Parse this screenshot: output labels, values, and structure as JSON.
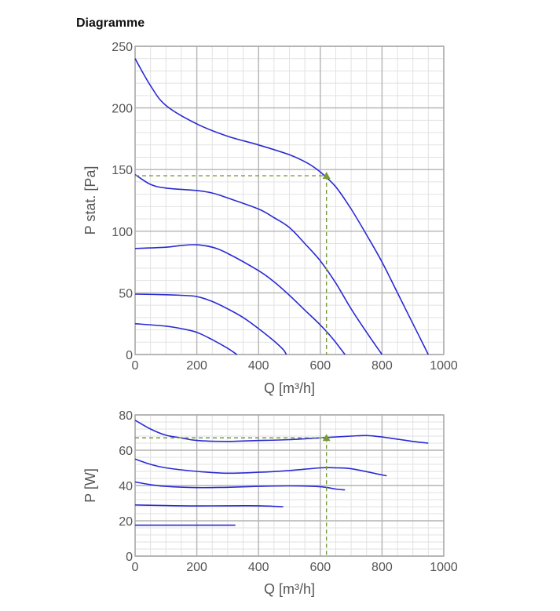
{
  "page_title": "Diagramme",
  "colors": {
    "curve": "#2a2ad4",
    "operating": "#7a9a3a",
    "grid_major": "#b4b4b4",
    "grid_minor": "#e2e2e2",
    "axis_text": "#555555"
  },
  "chart_data": [
    {
      "type": "line",
      "title": "",
      "xlabel": "Q [m³/h]",
      "ylabel": "P stat. [Pa]",
      "xlim": [
        0,
        1000
      ],
      "ylim": [
        0,
        250
      ],
      "xticks": [
        0,
        200,
        400,
        600,
        800,
        1000
      ],
      "yticks": [
        0,
        50,
        100,
        150,
        200,
        250
      ],
      "grid": true,
      "operating_point": {
        "x": 620,
        "y": 145
      },
      "series": [
        {
          "points": [
            [
              0,
              240
            ],
            [
              50,
              218
            ],
            [
              100,
              202
            ],
            [
              200,
              187
            ],
            [
              300,
              177
            ],
            [
              400,
              170
            ],
            [
              500,
              162
            ],
            [
              560,
              155
            ],
            [
              600,
              148
            ],
            [
              650,
              136
            ],
            [
              700,
              118
            ],
            [
              750,
              97
            ],
            [
              800,
              75
            ],
            [
              850,
              50
            ],
            [
              900,
              25
            ],
            [
              950,
              0
            ]
          ]
        },
        {
          "points": [
            [
              0,
              146
            ],
            [
              50,
              138
            ],
            [
              100,
              135
            ],
            [
              200,
              133
            ],
            [
              250,
              131
            ],
            [
              300,
              127
            ],
            [
              400,
              118
            ],
            [
              450,
              111
            ],
            [
              500,
              103
            ],
            [
              550,
              90
            ],
            [
              600,
              76
            ],
            [
              650,
              58
            ],
            [
              700,
              37
            ],
            [
              750,
              18
            ],
            [
              800,
              0
            ]
          ]
        },
        {
          "points": [
            [
              0,
              86
            ],
            [
              100,
              87
            ],
            [
              150,
              88.5
            ],
            [
              200,
              89
            ],
            [
              250,
              87
            ],
            [
              300,
              82
            ],
            [
              400,
              68
            ],
            [
              450,
              59
            ],
            [
              500,
              48
            ],
            [
              550,
              36
            ],
            [
              600,
              24
            ],
            [
              640,
              13
            ],
            [
              680,
              0
            ]
          ]
        },
        {
          "points": [
            [
              0,
              49
            ],
            [
              100,
              48.5
            ],
            [
              150,
              48
            ],
            [
              200,
              47
            ],
            [
              250,
              43
            ],
            [
              300,
              37
            ],
            [
              350,
              30
            ],
            [
              400,
              21
            ],
            [
              450,
              11
            ],
            [
              480,
              4
            ],
            [
              490,
              0
            ]
          ]
        },
        {
          "points": [
            [
              0,
              25
            ],
            [
              100,
              23
            ],
            [
              150,
              21
            ],
            [
              200,
              18
            ],
            [
              250,
              12
            ],
            [
              300,
              5
            ],
            [
              330,
              0
            ]
          ]
        }
      ]
    },
    {
      "type": "line",
      "title": "",
      "xlabel": "Q [m³/h]",
      "ylabel": "P [W]",
      "xlim": [
        0,
        1000
      ],
      "ylim": [
        0,
        80
      ],
      "xticks": [
        0,
        200,
        400,
        600,
        800,
        1000
      ],
      "yticks": [
        0,
        20,
        40,
        60,
        80
      ],
      "grid": true,
      "operating_point": {
        "x": 620,
        "y": 67
      },
      "series": [
        {
          "points": [
            [
              0,
              77
            ],
            [
              50,
              72
            ],
            [
              100,
              68.5
            ],
            [
              150,
              67
            ],
            [
              200,
              65.5
            ],
            [
              300,
              65
            ],
            [
              400,
              65.5
            ],
            [
              500,
              66
            ],
            [
              600,
              67
            ],
            [
              700,
              68
            ],
            [
              750,
              68.3
            ],
            [
              800,
              67.5
            ],
            [
              900,
              65
            ],
            [
              950,
              64
            ]
          ]
        },
        {
          "points": [
            [
              0,
              55
            ],
            [
              50,
              52
            ],
            [
              100,
              50
            ],
            [
              200,
              48
            ],
            [
              300,
              47
            ],
            [
              400,
              47.5
            ],
            [
              500,
              48.5
            ],
            [
              600,
              50
            ],
            [
              650,
              50
            ],
            [
              700,
              49.5
            ],
            [
              800,
              46
            ],
            [
              815,
              45.5
            ]
          ]
        },
        {
          "points": [
            [
              0,
              42
            ],
            [
              50,
              40.5
            ],
            [
              100,
              39.5
            ],
            [
              200,
              38.8
            ],
            [
              300,
              39
            ],
            [
              400,
              39.5
            ],
            [
              500,
              39.8
            ],
            [
              600,
              39.3
            ],
            [
              650,
              38
            ],
            [
              680,
              37.5
            ]
          ]
        },
        {
          "points": [
            [
              0,
              29
            ],
            [
              100,
              28.6
            ],
            [
              200,
              28.4
            ],
            [
              300,
              28.5
            ],
            [
              400,
              28.5
            ],
            [
              480,
              28
            ]
          ]
        },
        {
          "points": [
            [
              0,
              17.5
            ],
            [
              100,
              17.5
            ],
            [
              200,
              17.5
            ],
            [
              300,
              17.5
            ],
            [
              325,
              17.5
            ]
          ]
        }
      ]
    }
  ]
}
